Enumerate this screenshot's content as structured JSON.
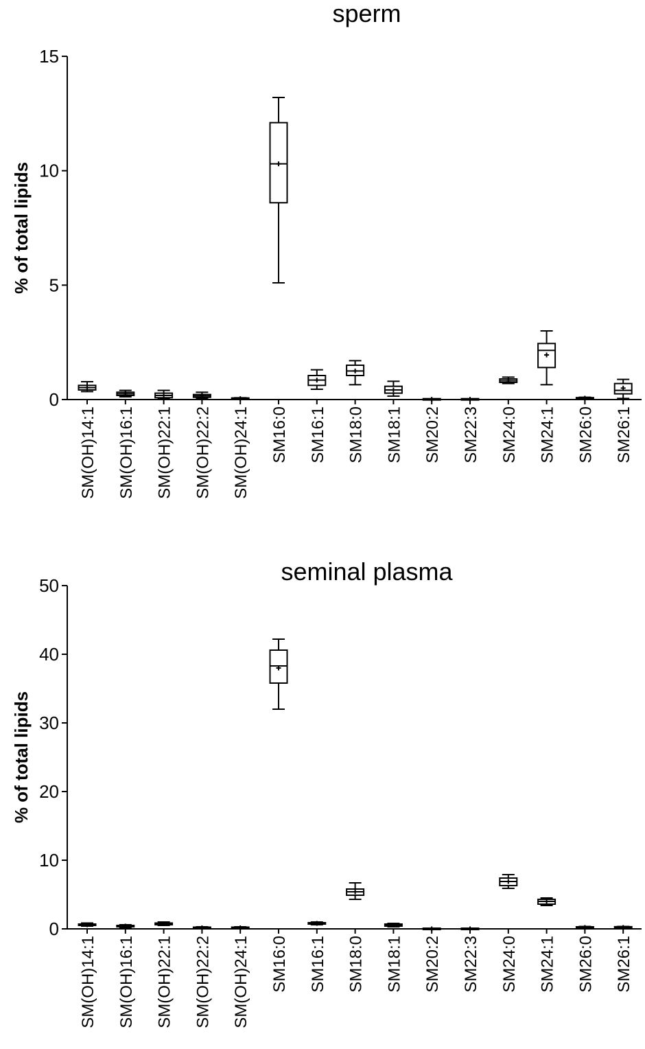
{
  "chart_data": [
    {
      "type": "box",
      "title": "sperm",
      "ylabel": "% of total lipids",
      "ylim": [
        0,
        15
      ],
      "yticks": [
        0,
        5,
        10,
        15
      ],
      "grid": false,
      "categories": [
        "SM(OH)14:1",
        "SM(OH)16:1",
        "SM(OH)22:1",
        "SM(OH)22:2",
        "SM(OH)24:1",
        "SM16:0",
        "SM16:1",
        "SM18:0",
        "SM18:1",
        "SM20:2",
        "SM22:3",
        "SM24:0",
        "SM24:1",
        "SM26:0",
        "SM26:1"
      ],
      "boxes": [
        {
          "min": 0.35,
          "q1": 0.42,
          "median": 0.52,
          "q3": 0.62,
          "max": 0.78,
          "mean": 0.52
        },
        {
          "min": 0.12,
          "q1": 0.18,
          "median": 0.25,
          "q3": 0.32,
          "max": 0.4,
          "mean": 0.25
        },
        {
          "min": 0.03,
          "q1": 0.08,
          "median": 0.18,
          "q3": 0.28,
          "max": 0.4,
          "mean": 0.18
        },
        {
          "min": 0.05,
          "q1": 0.1,
          "median": 0.16,
          "q3": 0.22,
          "max": 0.32,
          "mean": 0.16
        },
        {
          "min": 0.0,
          "q1": 0.02,
          "median": 0.04,
          "q3": 0.06,
          "max": 0.08,
          "mean": 0.04
        },
        {
          "min": 5.1,
          "q1": 8.6,
          "median": 10.3,
          "q3": 12.1,
          "max": 13.2,
          "mean": 10.3
        },
        {
          "min": 0.45,
          "q1": 0.62,
          "median": 0.85,
          "q3": 1.05,
          "max": 1.3,
          "mean": 0.85
        },
        {
          "min": 0.65,
          "q1": 1.05,
          "median": 1.25,
          "q3": 1.5,
          "max": 1.7,
          "mean": 1.25
        },
        {
          "min": 0.15,
          "q1": 0.28,
          "median": 0.42,
          "q3": 0.58,
          "max": 0.8,
          "mean": 0.42
        },
        {
          "min": 0.0,
          "q1": 0.0,
          "median": 0.01,
          "q3": 0.02,
          "max": 0.03,
          "mean": 0.01
        },
        {
          "min": 0.0,
          "q1": 0.0,
          "median": 0.01,
          "q3": 0.02,
          "max": 0.03,
          "mean": 0.01
        },
        {
          "min": 0.7,
          "q1": 0.75,
          "median": 0.82,
          "q3": 0.9,
          "max": 0.98,
          "mean": 0.82
        },
        {
          "min": 0.65,
          "q1": 1.4,
          "median": 2.15,
          "q3": 2.45,
          "max": 3.0,
          "mean": 1.95
        },
        {
          "min": 0.0,
          "q1": 0.03,
          "median": 0.06,
          "q3": 0.08,
          "max": 0.1,
          "mean": 0.06
        },
        {
          "min": 0.05,
          "q1": 0.25,
          "median": 0.4,
          "q3": 0.7,
          "max": 0.88,
          "mean": 0.5
        }
      ]
    },
    {
      "type": "box",
      "title": "seminal plasma",
      "ylabel": "% of total lipids",
      "ylim": [
        0,
        50
      ],
      "yticks": [
        0,
        10,
        20,
        30,
        40,
        50
      ],
      "grid": false,
      "categories": [
        "SM(OH)14:1",
        "SM(OH)16:1",
        "SM(OH)22:1",
        "SM(OH)22:2",
        "SM(OH)24:1",
        "SM16:0",
        "SM16:1",
        "SM18:0",
        "SM18:1",
        "SM20:2",
        "SM22:3",
        "SM24:0",
        "SM24:1",
        "SM26:0",
        "SM26:1"
      ],
      "boxes": [
        {
          "min": 0.4,
          "q1": 0.5,
          "median": 0.6,
          "q3": 0.7,
          "max": 0.85,
          "mean": 0.6
        },
        {
          "min": 0.2,
          "q1": 0.3,
          "median": 0.4,
          "q3": 0.5,
          "max": 0.6,
          "mean": 0.4
        },
        {
          "min": 0.5,
          "q1": 0.6,
          "median": 0.75,
          "q3": 0.85,
          "max": 1.0,
          "mean": 0.75
        },
        {
          "min": 0.05,
          "q1": 0.1,
          "median": 0.15,
          "q3": 0.2,
          "max": 0.3,
          "mean": 0.15
        },
        {
          "min": 0.05,
          "q1": 0.1,
          "median": 0.15,
          "q3": 0.2,
          "max": 0.3,
          "mean": 0.15
        },
        {
          "min": 32.0,
          "q1": 35.8,
          "median": 38.3,
          "q3": 40.6,
          "max": 42.2,
          "mean": 38.0
        },
        {
          "min": 0.6,
          "q1": 0.7,
          "median": 0.8,
          "q3": 0.9,
          "max": 1.0,
          "mean": 0.8
        },
        {
          "min": 4.3,
          "q1": 4.9,
          "median": 5.4,
          "q3": 5.8,
          "max": 6.7,
          "mean": 5.4
        },
        {
          "min": 0.3,
          "q1": 0.4,
          "median": 0.55,
          "q3": 0.7,
          "max": 0.8,
          "mean": 0.55
        },
        {
          "min": 0.0,
          "q1": 0.0,
          "median": 0.0,
          "q3": 0.0,
          "max": 0.0,
          "mean": 0.0
        },
        {
          "min": 0.0,
          "q1": 0.0,
          "median": 0.0,
          "q3": 0.0,
          "max": 0.0,
          "mean": 0.0
        },
        {
          "min": 5.9,
          "q1": 6.3,
          "median": 6.9,
          "q3": 7.4,
          "max": 7.9,
          "mean": 6.9
        },
        {
          "min": 3.4,
          "q1": 3.6,
          "median": 4.0,
          "q3": 4.3,
          "max": 4.5,
          "mean": 4.0
        },
        {
          "min": 0.1,
          "q1": 0.15,
          "median": 0.2,
          "q3": 0.25,
          "max": 0.35,
          "mean": 0.2
        },
        {
          "min": 0.1,
          "q1": 0.15,
          "median": 0.2,
          "q3": 0.28,
          "max": 0.35,
          "mean": 0.2
        }
      ]
    }
  ]
}
